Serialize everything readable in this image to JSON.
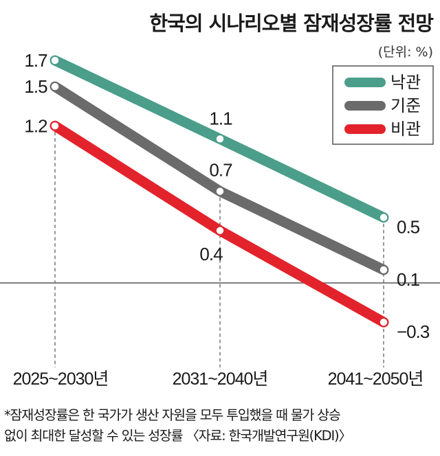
{
  "chart_data": {
    "type": "line",
    "title": "한국의 시나리오별 잠재성장률 전망",
    "unit_note": "(단위: %)",
    "categories": [
      "2025~2030년",
      "2031~2040년",
      "2041~2050년"
    ],
    "ylim": [
      -0.3,
      1.7
    ],
    "grid": false,
    "zero_line": true,
    "legend_position": "top-right",
    "series": [
      {
        "name": "낙관",
        "color": "#4a9e8a",
        "values": [
          1.7,
          1.1,
          0.5
        ],
        "labels": [
          "1.7",
          "1.1",
          "0.5"
        ]
      },
      {
        "name": "기준",
        "color": "#6b6b6b",
        "values": [
          1.5,
          0.7,
          0.1
        ],
        "labels": [
          "1.5",
          "0.7",
          "0.1"
        ]
      },
      {
        "name": "비관",
        "color": "#e3232c",
        "values": [
          1.2,
          0.4,
          -0.3
        ],
        "labels": [
          "1.2",
          "0.4",
          "−0.3"
        ]
      }
    ]
  },
  "footnote": {
    "line1": "*잠재성장률은 한 국가가 생산 자원을 모두 투입했을 때 물가 상승",
    "line2": "없이 최대한 달성할 수 있는 성장률 〈자료: 한국개발연구원(KDI)〉"
  }
}
